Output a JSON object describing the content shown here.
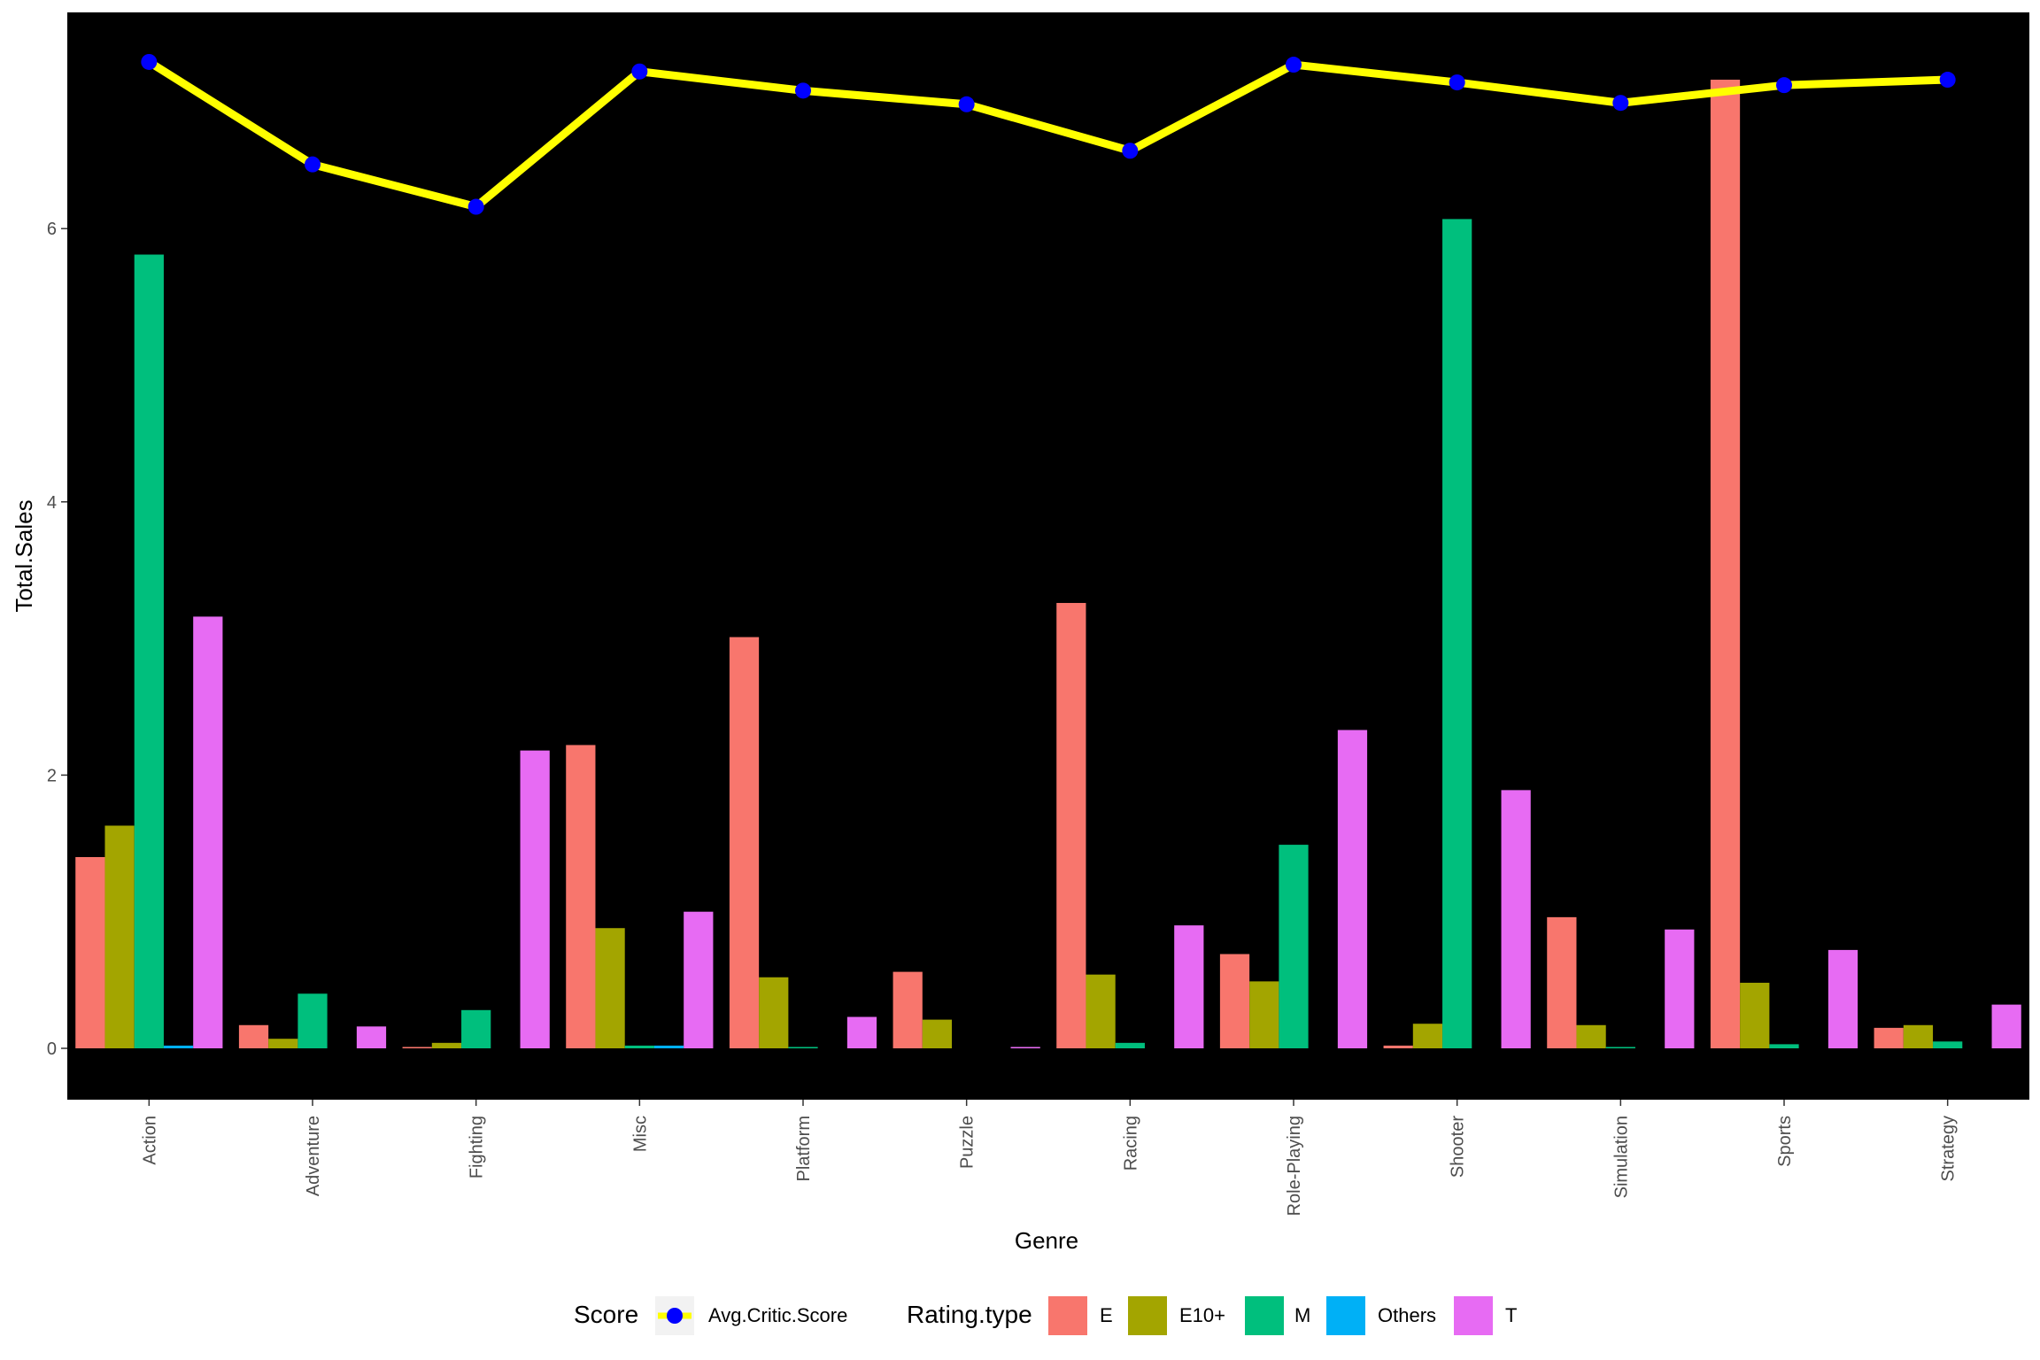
{
  "chart_data": {
    "type": "bar",
    "xlabel": "Genre",
    "ylabel": "Total.Sales",
    "ylim": [
      -0.35,
      7.6
    ],
    "yticks": [
      0,
      2,
      4,
      6
    ],
    "background": "#000000",
    "grid": false,
    "legend_position": "bottom",
    "categories": [
      "Action",
      "Adventure",
      "Fighting",
      "Misc",
      "Platform",
      "Puzzle",
      "Racing",
      "Role-Playing",
      "Shooter",
      "Simulation",
      "Sports",
      "Strategy"
    ],
    "series": [
      {
        "name": "E",
        "color": "#F8766D",
        "values": [
          1.4,
          0.17,
          0.01,
          2.22,
          3.01,
          0.56,
          3.26,
          0.69,
          0.02,
          0.96,
          7.09,
          0.15
        ]
      },
      {
        "name": "E10+",
        "color": "#A3A500",
        "values": [
          1.63,
          0.07,
          0.04,
          0.88,
          0.52,
          0.21,
          0.54,
          0.49,
          0.18,
          0.17,
          0.48,
          0.17
        ]
      },
      {
        "name": "M",
        "color": "#00BF7D",
        "values": [
          5.81,
          0.4,
          0.28,
          0.02,
          0.01,
          null,
          0.04,
          1.49,
          6.07,
          0.01,
          0.03,
          0.05
        ]
      },
      {
        "name": "Others",
        "color": "#00B0F6",
        "values": [
          0.02,
          null,
          null,
          0.02,
          null,
          null,
          null,
          null,
          null,
          null,
          null,
          null
        ]
      },
      {
        "name": "T",
        "color": "#E76BF3",
        "values": [
          3.16,
          0.16,
          2.18,
          1.0,
          0.23,
          0.01,
          0.9,
          2.33,
          1.89,
          0.87,
          0.72,
          0.32
        ]
      }
    ],
    "line_series": {
      "name": "Avg.Critic.Score",
      "line_color": "#FFFF00",
      "point_color": "#0000FF",
      "values": [
        7.22,
        6.47,
        6.16,
        7.15,
        7.01,
        6.91,
        6.57,
        7.2,
        7.07,
        6.92,
        7.05,
        7.09
      ]
    },
    "legends": [
      {
        "title": "Score",
        "entries": [
          "Avg.Critic.Score"
        ]
      },
      {
        "title": "Rating.type",
        "entries": [
          "E",
          "E10+",
          "M",
          "Others",
          "T"
        ]
      }
    ]
  }
}
